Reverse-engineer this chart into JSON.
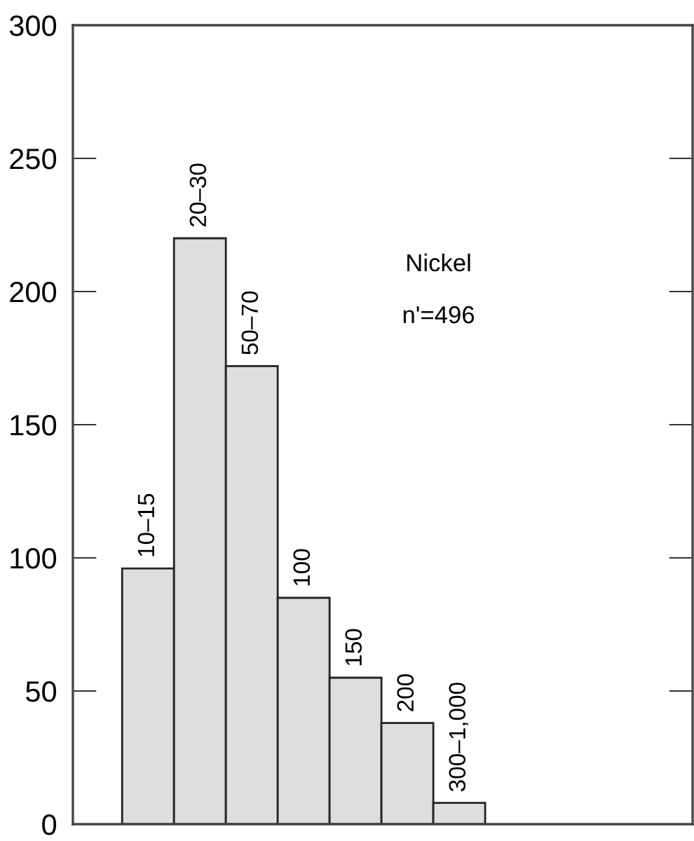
{
  "chart_data": {
    "type": "bar",
    "categories": [
      "10–15",
      "20–30",
      "50–70",
      "100",
      "150",
      "200",
      "300–1,000"
    ],
    "values": [
      96,
      220,
      172,
      85,
      55,
      38,
      8
    ],
    "color": "#dedede",
    "ylim": [
      0,
      300
    ],
    "yticks": [
      0,
      50,
      100,
      150,
      200,
      250,
      300
    ],
    "tick_labels": "y",
    "grid": false,
    "annotations": [
      "Nickel",
      "n'=496"
    ]
  }
}
